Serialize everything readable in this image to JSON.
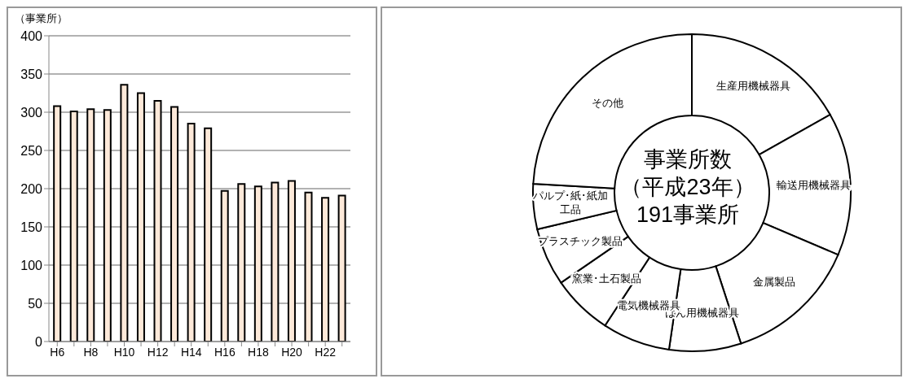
{
  "chart_data": [
    {
      "type": "bar",
      "ylabel": "（事業所）",
      "categories": [
        "H6",
        null,
        "H8",
        null,
        "H10",
        null,
        "H12",
        null,
        "H14",
        null,
        "H16",
        null,
        "H18",
        null,
        "H20",
        null,
        "H22",
        null
      ],
      "values": [
        308,
        301,
        304,
        303,
        336,
        325,
        315,
        307,
        285,
        279,
        197,
        206,
        203,
        208,
        210,
        195,
        188,
        191
      ],
      "color": "#fde9d9",
      "ylim": [
        0,
        400
      ],
      "yticks": [
        0,
        50,
        100,
        150,
        200,
        250,
        300,
        350,
        400
      ],
      "grid": "y",
      "legend": false
    },
    {
      "type": "donut",
      "title": "事業所数",
      "subtitle": "（平成23年）",
      "annotations": [
        "191事業所"
      ],
      "categories": [
        "生産用機械器具",
        "輸送用機械器具",
        "金属製品",
        "はん用機械器具",
        "電気機械器具",
        "窯業･土石製品",
        "プラスチック製品",
        "パルプ･紙･紙加工品",
        "その他"
      ],
      "values": [
        16.8,
        14.6,
        13.6,
        7.3,
        6.9,
        6.2,
        5.9,
        4.6,
        24.1
      ],
      "colors": [
        "#ffffff",
        "#ffffff",
        "#ffffff",
        "#ffffff",
        "#ffffff",
        "#ffffff",
        "#ffffff",
        "#ffffff",
        "#ffffff"
      ],
      "legend": false
    }
  ]
}
